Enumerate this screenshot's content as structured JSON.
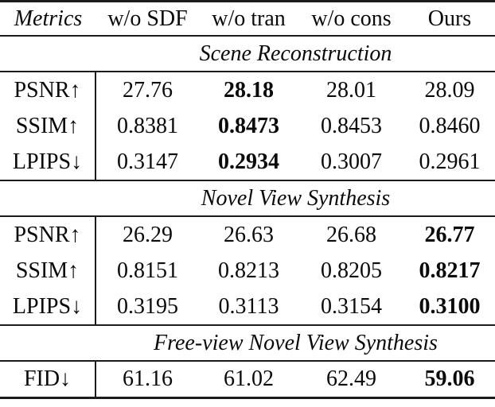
{
  "colors": {
    "background": "#ffffff",
    "text": "#0a0a0a",
    "rule": "#1b1b1b"
  },
  "table": {
    "columns": [
      "Metrics",
      "w/o SDF",
      "w/o tran",
      "w/o cons",
      "Ours"
    ],
    "sections": [
      {
        "title": "Scene Reconstruction",
        "rows": [
          {
            "metric": "PSNR↑",
            "values": [
              "27.76",
              "28.18",
              "28.01",
              "28.09"
            ],
            "bold_index": 1
          },
          {
            "metric": "SSIM↑",
            "values": [
              "0.8381",
              "0.8473",
              "0.8453",
              "0.8460"
            ],
            "bold_index": 1
          },
          {
            "metric": "LPIPS↓",
            "values": [
              "0.3147",
              "0.2934",
              "0.3007",
              "0.2961"
            ],
            "bold_index": 1
          }
        ]
      },
      {
        "title": "Novel View Synthesis",
        "rows": [
          {
            "metric": "PSNR↑",
            "values": [
              "26.29",
              "26.63",
              "26.68",
              "26.77"
            ],
            "bold_index": 3
          },
          {
            "metric": "SSIM↑",
            "values": [
              "0.8151",
              "0.8213",
              "0.8205",
              "0.8217"
            ],
            "bold_index": 3
          },
          {
            "metric": "LPIPS↓",
            "values": [
              "0.3195",
              "0.3113",
              "0.3154",
              "0.3100"
            ],
            "bold_index": 3
          }
        ]
      },
      {
        "title": "Free-view Novel View Synthesis",
        "rows": [
          {
            "metric": "FID↓",
            "values": [
              "61.16",
              "61.02",
              "62.49",
              "59.06"
            ],
            "bold_index": 3
          }
        ]
      }
    ]
  }
}
